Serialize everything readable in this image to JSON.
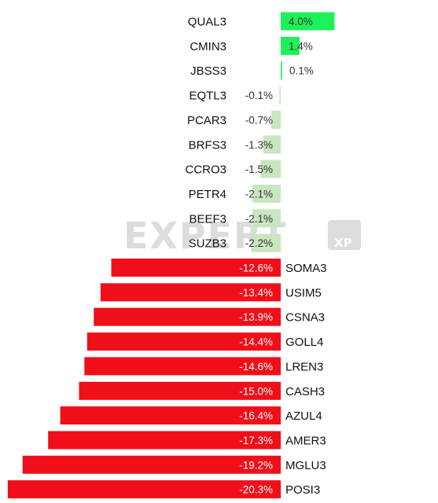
{
  "watermark": {
    "text": "EXPERT",
    "badge": "XP"
  },
  "colors": {
    "strong_positive": "#1ef05a",
    "weak_negative": "#c8e6bf",
    "strong_negative": "#f00f19"
  },
  "chart_data": {
    "type": "bar",
    "orientation": "horizontal",
    "title": "",
    "xlabel": "",
    "ylabel": "",
    "unit": "%",
    "categories": [
      "QUAL3",
      "CMIN3",
      "JBSS3",
      "EQTL3",
      "PCAR3",
      "BRFS3",
      "CCRO3",
      "PETR4",
      "BEEF3",
      "SUZB3",
      "SOMA3",
      "USIM5",
      "CSNA3",
      "GOLL4",
      "LREN3",
      "CASH3",
      "AZUL4",
      "AMER3",
      "MGLU3",
      "POSI3"
    ],
    "values": [
      4.0,
      1.4,
      0.1,
      -0.1,
      -0.7,
      -1.3,
      -1.5,
      -2.1,
      -2.1,
      -2.2,
      -12.6,
      -13.4,
      -13.9,
      -14.4,
      -14.6,
      -15.0,
      -16.4,
      -17.3,
      -19.2,
      -20.3
    ],
    "labels": [
      "4.0%",
      "1.4%",
      "0.1%",
      "-0.1%",
      "-0.7%",
      "-1.3%",
      "-1.5%",
      "-2.1%",
      "-2.1%",
      "-2.2%",
      "-12.6%",
      "-13.4%",
      "-13.9%",
      "-14.4%",
      "-14.6%",
      "-15.0%",
      "-16.4%",
      "-17.3%",
      "-19.2%",
      "-20.3%"
    ],
    "grid": false,
    "legend": "none"
  }
}
